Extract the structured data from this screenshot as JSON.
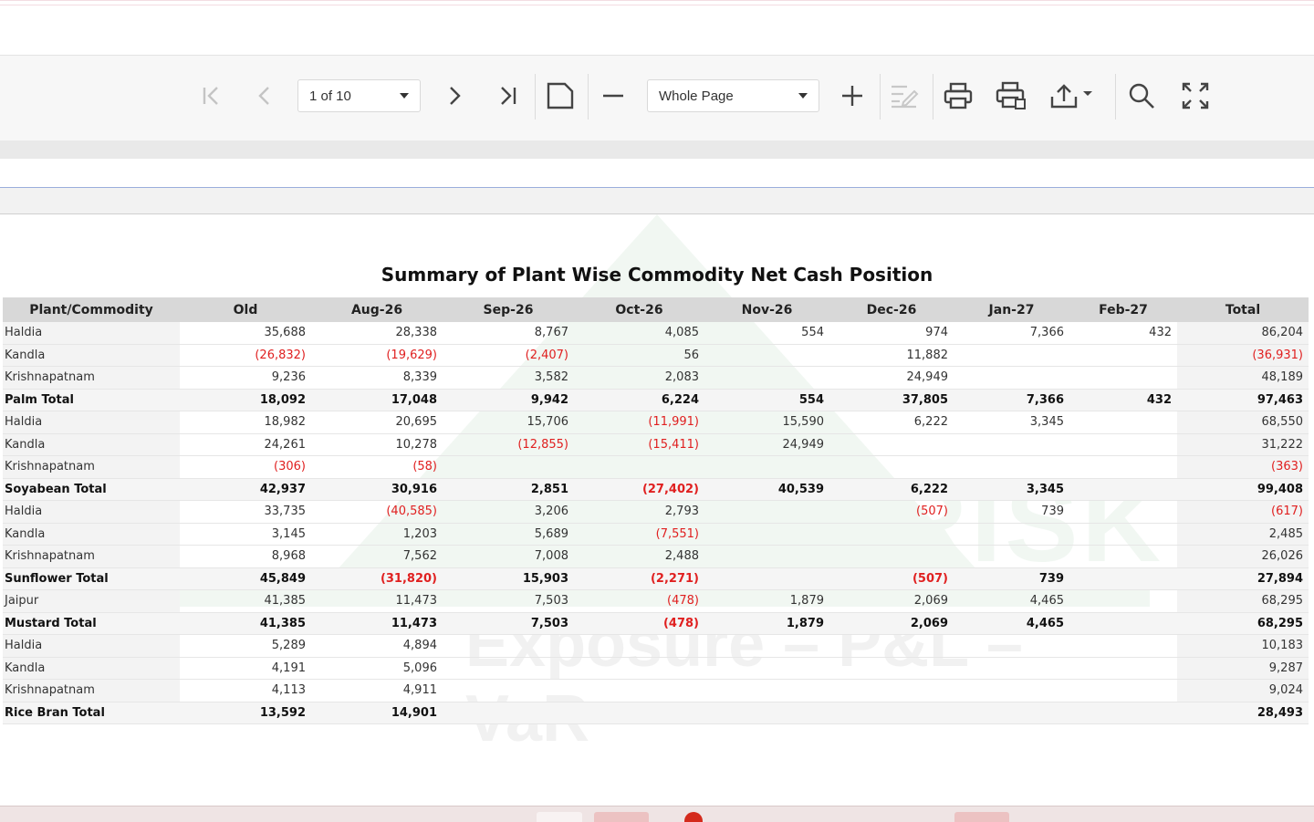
{
  "toolbar": {
    "page_select": "1 of 10",
    "zoom_select": "Whole Page",
    "icons": [
      "first-page-icon",
      "previous-page-icon",
      "next-page-icon",
      "last-page-icon",
      "page-layout-icon",
      "zoom-out-icon",
      "zoom-in-icon",
      "edit-icon",
      "print-icon",
      "print-page-icon",
      "export-icon",
      "search-icon",
      "fullscreen-icon"
    ]
  },
  "report": {
    "title": "Summary of Plant Wise Commodity Net Cash Position",
    "watermark_line1": "TRANSRISK",
    "watermark_line2": "Exposure – P&L – VaR",
    "columns": [
      "Plant/Commodity",
      "Old",
      "Aug-26",
      "Sep-26",
      "Oct-26",
      "Nov-26",
      "Dec-26",
      "Jan-27",
      "Feb-27",
      "Total"
    ],
    "rows": [
      {
        "type": "row",
        "cells": [
          "Haldia",
          "35,688",
          "28,338",
          "8,767",
          "4,085",
          "554",
          "974",
          "7,366",
          "432",
          "86,204"
        ]
      },
      {
        "type": "row",
        "cells": [
          "Kandla",
          "(26,832)",
          "(19,629)",
          "(2,407)",
          "56",
          "",
          "11,882",
          "",
          "",
          "(36,931)"
        ]
      },
      {
        "type": "row",
        "cells": [
          "Krishnapatnam",
          "9,236",
          "8,339",
          "3,582",
          "2,083",
          "",
          "24,949",
          "",
          "",
          "48,189"
        ]
      },
      {
        "type": "total",
        "cells": [
          "Palm Total",
          "18,092",
          "17,048",
          "9,942",
          "6,224",
          "554",
          "37,805",
          "7,366",
          "432",
          "97,463"
        ]
      },
      {
        "type": "row",
        "cells": [
          "Haldia",
          "18,982",
          "20,695",
          "15,706",
          "(11,991)",
          "15,590",
          "6,222",
          "3,345",
          "",
          "68,550"
        ]
      },
      {
        "type": "row",
        "cells": [
          "Kandla",
          "24,261",
          "10,278",
          "(12,855)",
          "(15,411)",
          "24,949",
          "",
          "",
          "",
          "31,222"
        ]
      },
      {
        "type": "row",
        "cells": [
          "Krishnapatnam",
          "(306)",
          "(58)",
          "",
          "",
          "",
          "",
          "",
          "",
          "(363)"
        ]
      },
      {
        "type": "total",
        "cells": [
          "Soyabean Total",
          "42,937",
          "30,916",
          "2,851",
          "(27,402)",
          "40,539",
          "6,222",
          "3,345",
          "",
          "99,408"
        ]
      },
      {
        "type": "row",
        "cells": [
          "Haldia",
          "33,735",
          "(40,585)",
          "3,206",
          "2,793",
          "",
          "(507)",
          "739",
          "",
          "(617)"
        ]
      },
      {
        "type": "row",
        "cells": [
          "Kandla",
          "3,145",
          "1,203",
          "5,689",
          "(7,551)",
          "",
          "",
          "",
          "",
          "2,485"
        ]
      },
      {
        "type": "row",
        "cells": [
          "Krishnapatnam",
          "8,968",
          "7,562",
          "7,008",
          "2,488",
          "",
          "",
          "",
          "",
          "26,026"
        ]
      },
      {
        "type": "total",
        "cells": [
          "Sunflower Total",
          "45,849",
          "(31,820)",
          "15,903",
          "(2,271)",
          "",
          "(507)",
          "739",
          "",
          "27,894"
        ]
      },
      {
        "type": "row",
        "cells": [
          "Jaipur",
          "41,385",
          "11,473",
          "7,503",
          "(478)",
          "1,879",
          "2,069",
          "4,465",
          "",
          "68,295"
        ]
      },
      {
        "type": "total",
        "cells": [
          "Mustard Total",
          "41,385",
          "11,473",
          "7,503",
          "(478)",
          "1,879",
          "2,069",
          "4,465",
          "",
          "68,295"
        ]
      },
      {
        "type": "row",
        "cells": [
          "Haldia",
          "5,289",
          "4,894",
          "",
          "",
          "",
          "",
          "",
          "",
          "10,183"
        ]
      },
      {
        "type": "row",
        "cells": [
          "Kandla",
          "4,191",
          "5,096",
          "",
          "",
          "",
          "",
          "",
          "",
          "9,287"
        ]
      },
      {
        "type": "row",
        "cells": [
          "Krishnapatnam",
          "4,113",
          "4,911",
          "",
          "",
          "",
          "",
          "",
          "",
          "9,024"
        ]
      },
      {
        "type": "total",
        "cells": [
          "Rice Bran Total",
          "13,592",
          "14,901",
          "",
          "",
          "",
          "",
          "",
          "",
          "28,493"
        ]
      }
    ]
  }
}
